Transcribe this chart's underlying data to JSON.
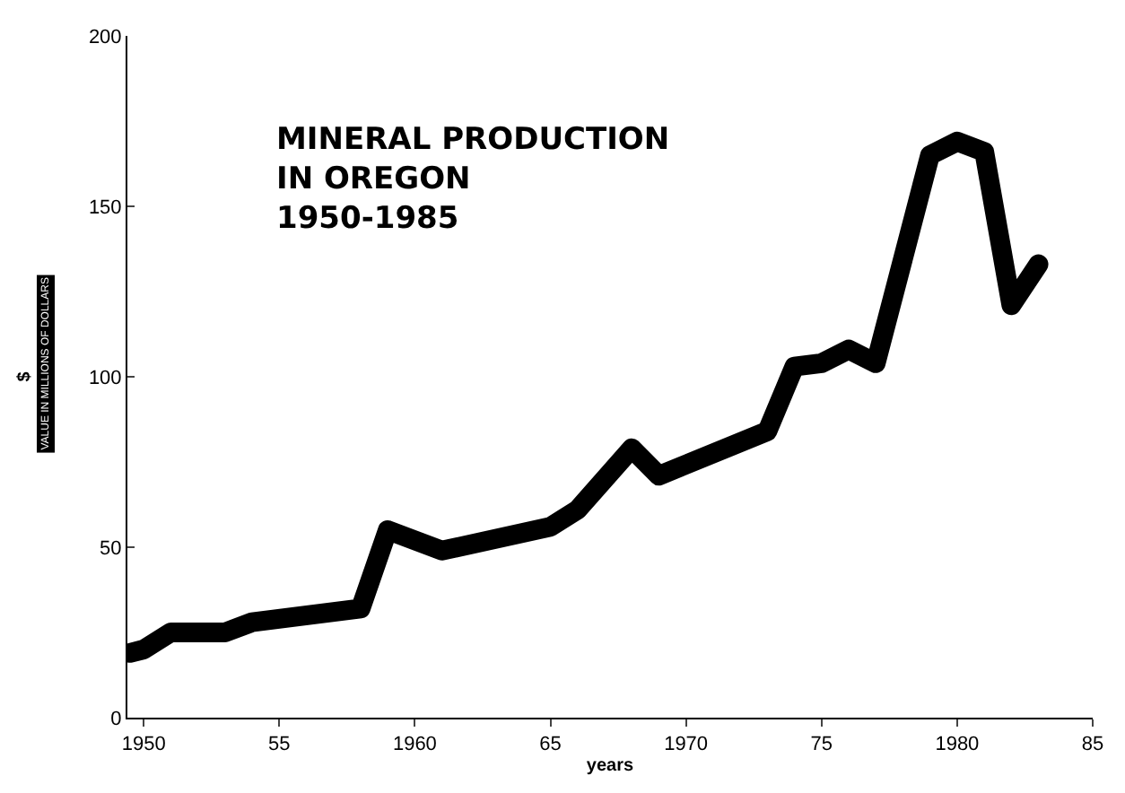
{
  "chart_data": {
    "type": "line",
    "title": "MINERAL PRODUCTION\nIN OREGON\n1950-1985",
    "xlabel": "years",
    "ylabel": "$",
    "annotations": [
      "VALUE IN MILLIONS OF DOLLARS"
    ],
    "x": [
      1949.5,
      1950,
      1951,
      1953,
      1954,
      1958,
      1959,
      1961,
      1965,
      1966,
      1968,
      1969,
      1973,
      1974,
      1975,
      1976,
      1977,
      1979,
      1980,
      1981,
      1982,
      1983
    ],
    "series": [
      {
        "color": "#000000",
        "values": [
          19,
          20,
          25,
          25,
          28,
          32,
          55,
          49,
          56,
          61,
          79,
          71,
          84,
          103,
          104,
          108,
          104,
          165,
          169,
          166,
          121,
          133
        ]
      }
    ],
    "xlim": [
      1949.4,
      1985
    ],
    "xticks": [
      1950,
      {
        "value": 1955,
        "label": "55"
      },
      1960,
      {
        "value": 1965,
        "label": "65"
      },
      1970,
      {
        "value": 1975,
        "label": "75"
      },
      1980,
      {
        "value": 1985,
        "label": "85"
      }
    ],
    "ylim": [
      0,
      200
    ],
    "yticks": [
      0,
      50,
      100,
      150,
      200
    ],
    "line_style": "solid"
  }
}
